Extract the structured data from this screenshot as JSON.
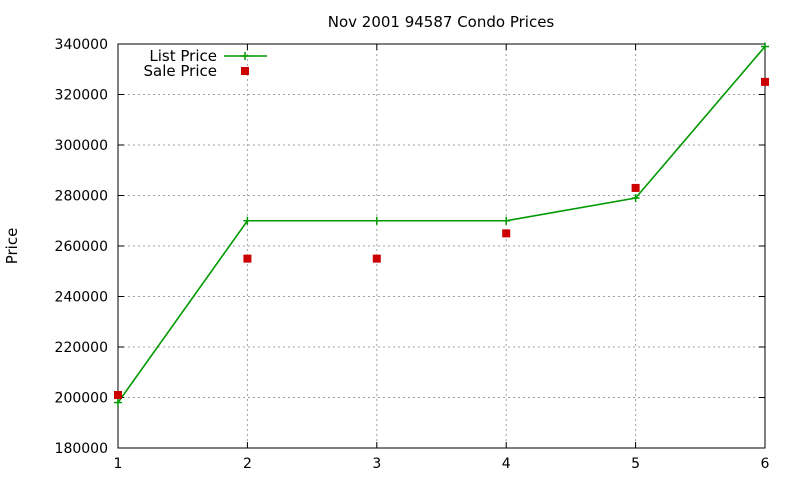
{
  "chart_data": {
    "type": "line",
    "title": "Nov 2001 94587 Condo Prices",
    "xlabel": "",
    "ylabel": "Price",
    "x": [
      1,
      2,
      3,
      4,
      5,
      6
    ],
    "xlim": [
      1,
      6
    ],
    "ylim": [
      180000,
      340000
    ],
    "x_ticks": [
      "1",
      "2",
      "3",
      "4",
      "5",
      "6"
    ],
    "y_ticks": [
      "180000",
      "200000",
      "220000",
      "240000",
      "260000",
      "280000",
      "300000",
      "320000",
      "340000"
    ],
    "grid": true,
    "legend_position": "top-left",
    "series": [
      {
        "name": "List Price",
        "style": "line+cross",
        "color": "#009900",
        "values": [
          198000,
          270000,
          270000,
          270000,
          279000,
          339000
        ]
      },
      {
        "name": "Sale Price",
        "style": "square-markers",
        "color": "#cc0000",
        "values": [
          201000,
          255000,
          255000,
          265000,
          283000,
          325000
        ]
      }
    ]
  }
}
